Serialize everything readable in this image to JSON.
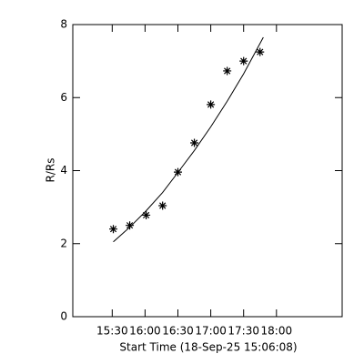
{
  "chart_data": {
    "type": "scatter",
    "xlabel": "Start Time (18-Sep-25 15:06:08)",
    "ylabel": "R/Rs",
    "xlim": [
      894,
      1140
    ],
    "xticks": [
      {
        "value": 930,
        "label": "15:30"
      },
      {
        "value": 960,
        "label": "16:00"
      },
      {
        "value": 990,
        "label": "16:30"
      },
      {
        "value": 1020,
        "label": "17:00"
      },
      {
        "value": 1050,
        "label": "17:30"
      },
      {
        "value": 1080,
        "label": "18:00"
      }
    ],
    "ylim": [
      0,
      8
    ],
    "yticks": [
      0,
      2,
      4,
      6,
      8
    ],
    "series": [
      {
        "type": "scatter",
        "marker": "asterisk",
        "color": "#000000",
        "x": [
          931,
          946,
          961,
          976,
          990,
          1005,
          1020,
          1035,
          1050,
          1065
        ],
        "values": [
          2.4,
          2.5,
          2.78,
          3.04,
          3.96,
          4.76,
          5.81,
          6.73,
          7.0,
          7.25
        ]
      },
      {
        "type": "line",
        "color": "#000000",
        "x": [
          931,
          946,
          961,
          976,
          990,
          1005,
          1020,
          1035,
          1050,
          1068
        ],
        "values": [
          2.05,
          2.45,
          2.9,
          3.4,
          3.95,
          4.55,
          5.2,
          5.9,
          6.65,
          7.65
        ]
      }
    ]
  }
}
